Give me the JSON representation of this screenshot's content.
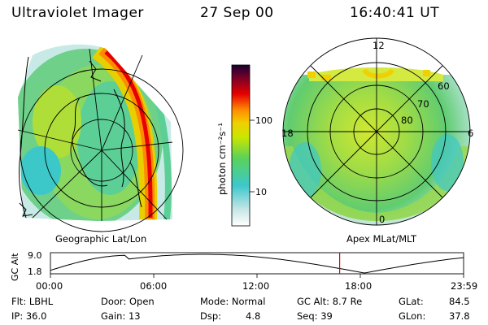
{
  "header": {
    "instrument": "Ultraviolet Imager",
    "date": "27 Sep 00",
    "time": "16:40:41 UT"
  },
  "left_panel": {
    "caption": "Geographic Lat/Lon"
  },
  "colorbar": {
    "unit_label": "photon cm⁻²s⁻¹",
    "ticks": [
      "100",
      "10"
    ],
    "scale": "log",
    "colors": [
      "#ffffff",
      "#c8e6e6",
      "#3cc8cc",
      "#5ad25a",
      "#c8e600",
      "#f0d000",
      "#ff8c00",
      "#e60000",
      "#780028",
      "#1a0033"
    ]
  },
  "right_panel": {
    "caption": "Apex MLat/MLT",
    "mlt_labels": [
      "12",
      "18",
      "6",
      "0"
    ],
    "mlat_labels": [
      "60",
      "70",
      "80"
    ]
  },
  "altitude_track": {
    "y_axis_label": "GC Alt",
    "y_ticks": [
      "9.0",
      "1.8"
    ],
    "x_ticks": [
      "00:00",
      "06:00",
      "12:00",
      "18:00",
      "23:59"
    ],
    "current_time_fraction": 0.7
  },
  "info": {
    "flt": "Flt: LBHL",
    "ip": "IP: 36.0",
    "door": "Door: Open",
    "gain": "Gain: 13",
    "mode": "Mode: Normal",
    "dsp_label": "Dsp:",
    "dsp_value": "4.8",
    "gc_alt": "GC Alt: 8.7 Re",
    "seq": "Seq: 39",
    "glat_label": "GLat:",
    "glat_value": "84.5",
    "glon_label": "GLon:",
    "glon_value": "37.8"
  }
}
